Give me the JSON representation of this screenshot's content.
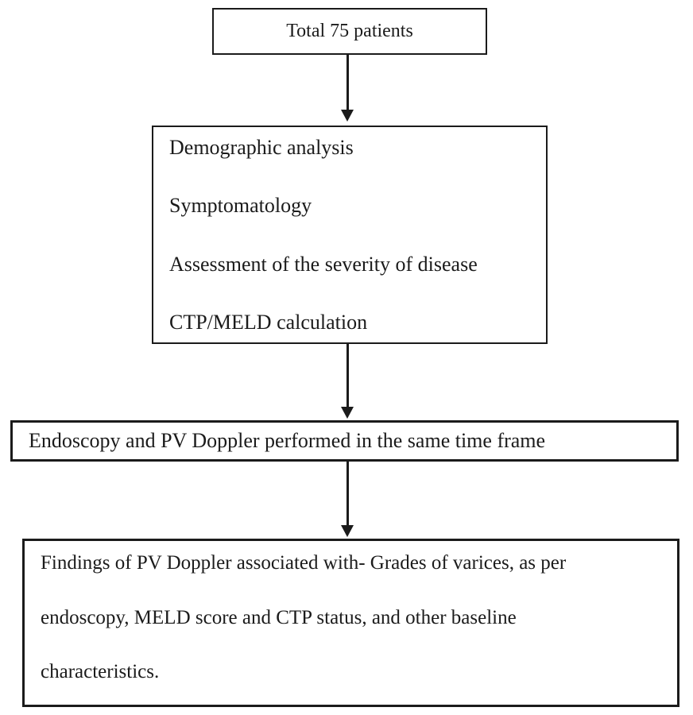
{
  "colors": {
    "ink": "#1b1b1b",
    "paper": "#ffffff"
  },
  "flowchart": {
    "nodes": {
      "total": {
        "text": "Total 75 patients"
      },
      "workup": {
        "lines": [
          "Demographic analysis",
          "Symptomatology",
          "Assessment of the severity of disease",
          "CTP/MELD calculation"
        ]
      },
      "endoscopy": {
        "text": "Endoscopy and PV Doppler performed in the same time frame"
      },
      "findings": {
        "lines": [
          "Findings of PV Doppler associated with- Grades of varices, as per",
          "endoscopy, MELD score and CTP status, and other baseline",
          "characteristics."
        ]
      }
    },
    "arrows": [
      {
        "from": "total",
        "to": "workup"
      },
      {
        "from": "workup",
        "to": "endoscopy"
      },
      {
        "from": "endoscopy",
        "to": "findings"
      }
    ]
  }
}
